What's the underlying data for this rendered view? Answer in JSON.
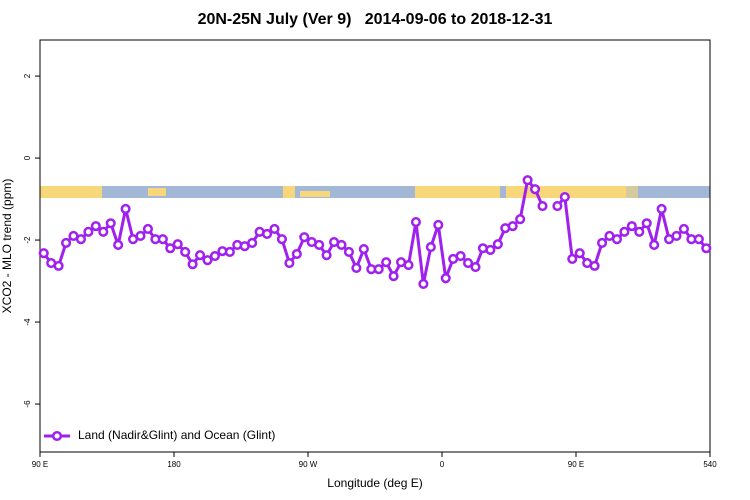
{
  "chart_data": {
    "type": "line",
    "title": "20N-25N July (Ver 9)   2014-09-06 to 2018-12-31",
    "xlabel": "Longitude (deg E)",
    "ylabel": "XCO2 - MLO trend (ppm)",
    "xlim": [
      90,
      540
    ],
    "ylim": [
      -7.17,
      2.88
    ],
    "xticks": [
      {
        "value": 90,
        "label": "90 E"
      },
      180,
      {
        "value": 270,
        "label": "90 W"
      },
      {
        "value": 360,
        "label": "0"
      },
      {
        "value": 450,
        "label": "90 E"
      },
      540
    ],
    "yticks": [
      2,
      0,
      -2,
      -4,
      -6
    ],
    "legend": "bottomleft",
    "x": [
      92.5,
      97.5,
      102.5,
      107.5,
      112.5,
      117.5,
      122.5,
      127.5,
      132.5,
      137.5,
      142.5,
      147.5,
      152.5,
      157.5,
      162.5,
      167.5,
      172.5,
      177.5,
      182.5,
      187.5,
      192.5,
      197.5,
      202.5,
      207.5,
      212.5,
      217.5,
      222.5,
      227.5,
      232.5,
      237.5,
      242.5,
      247.5,
      252.5,
      257.5,
      262.5,
      267.5,
      272.5,
      277.5,
      282.5,
      287.5,
      292.5,
      297.5,
      302.5,
      307.5,
      312.5,
      317.5,
      322.5,
      327.5,
      332.5,
      337.5,
      342.5,
      347.5,
      352.5,
      357.5,
      362.5,
      367.5,
      372.5,
      377.5,
      382.5,
      387.5,
      392.5,
      397.5,
      402.5,
      407.5,
      412.5,
      417.5,
      422.5,
      427.5,
      432.5,
      437.5,
      442.5,
      447.5,
      452.5,
      457.5,
      462.5,
      467.5,
      472.5,
      477.5,
      482.5,
      487.5,
      492.5,
      497.5,
      502.5,
      507.5,
      512.5,
      517.5,
      522.5,
      527.5,
      532.5,
      537.5
    ],
    "series": [
      {
        "name": "Land (Nadir&Glint) and Ocean (Glint)",
        "color": "#a020f0",
        "values": [
          -2.32,
          -2.56,
          -2.63,
          -2.07,
          -1.9,
          -1.98,
          -1.8,
          -1.66,
          -1.8,
          -1.59,
          -2.12,
          -1.24,
          -1.98,
          -1.9,
          -1.73,
          -1.98,
          -1.98,
          -2.2,
          -2.1,
          -2.29,
          -2.59,
          -2.37,
          -2.49,
          -2.39,
          -2.27,
          -2.29,
          -2.12,
          -2.15,
          -2.07,
          -1.8,
          -1.85,
          -1.73,
          -1.98,
          -2.56,
          -2.34,
          -1.93,
          -2.05,
          -2.12,
          -2.37,
          -2.05,
          -2.12,
          -2.29,
          -2.68,
          -2.22,
          -2.71,
          -2.71,
          -2.54,
          -2.88,
          -2.54,
          -2.61,
          -1.56,
          -3.07,
          -2.17,
          -1.63,
          -2.93,
          -2.46,
          -2.39,
          -2.56,
          -2.66,
          -2.2,
          -2.24,
          -2.1,
          -1.71,
          -1.66,
          -1.49,
          -0.54,
          -0.76,
          -1.17,
          null,
          -1.17,
          -0.95,
          -2.46,
          -2.32,
          -2.56,
          -2.63,
          -2.07,
          -1.9,
          -1.98,
          -1.8,
          -1.66,
          -1.8,
          -1.59,
          -2.12,
          -1.24,
          -1.98,
          -1.9,
          -1.73,
          -1.98,
          -1.98,
          -2.2
        ]
      }
    ]
  }
}
